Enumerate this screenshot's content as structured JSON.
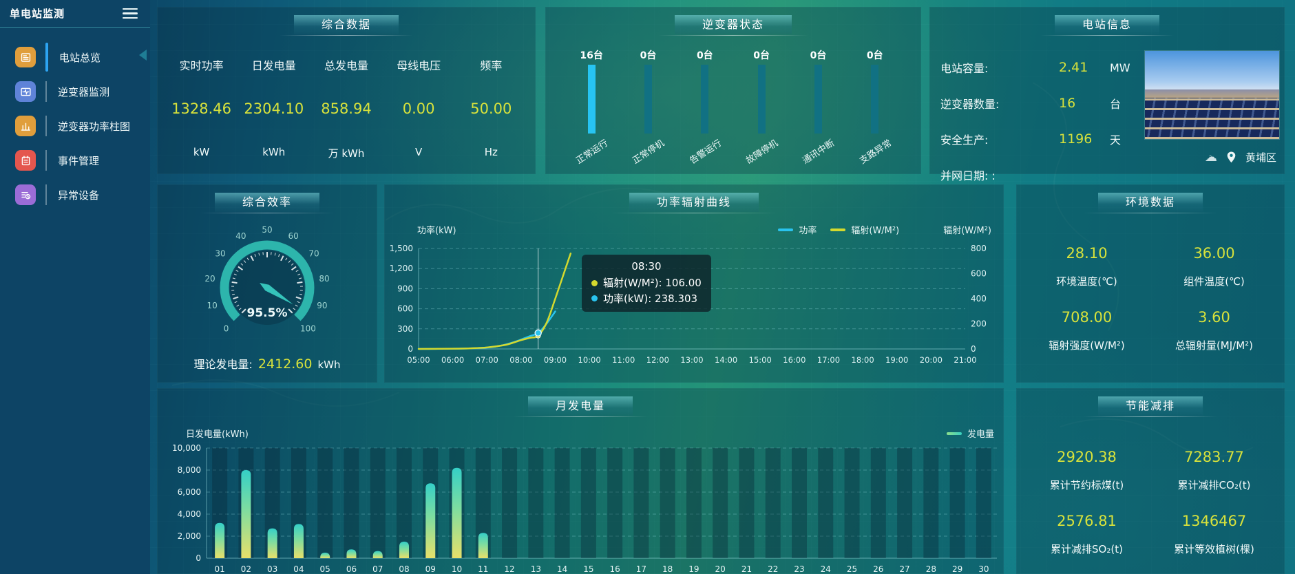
{
  "sidebar": {
    "title": "单电站监测",
    "items": [
      {
        "label": "电站总览",
        "icon": "overview-icon",
        "color": "#E09E3C",
        "active": true
      },
      {
        "label": "逆变器监测",
        "icon": "inverter-monitor-icon",
        "color": "#5F83D8",
        "active": false
      },
      {
        "label": "逆变器功率柱图",
        "icon": "power-bars-icon",
        "color": "#E09E3C",
        "active": false
      },
      {
        "label": "事件管理",
        "icon": "events-icon",
        "color": "#E4564E",
        "active": false
      },
      {
        "label": "异常设备",
        "icon": "abnormal-devices-icon",
        "color": "#9B6CD6",
        "active": false
      }
    ]
  },
  "summary": {
    "title": "综合数据",
    "metrics": [
      {
        "label": "实时功率",
        "value": "1328.46",
        "unit": "kW"
      },
      {
        "label": "日发电量",
        "value": "2304.10",
        "unit": "kWh"
      },
      {
        "label": "总发电量",
        "value": "858.94",
        "unit": "万 kWh"
      },
      {
        "label": "母线电压",
        "value": "0.00",
        "unit": "V"
      },
      {
        "label": "频率",
        "value": "50.00",
        "unit": "Hz"
      }
    ]
  },
  "inverter_status": {
    "title": "逆变器状态",
    "items": [
      {
        "count": "16台",
        "label": "正常运行",
        "highlight": true
      },
      {
        "count": "0台",
        "label": "正常停机",
        "highlight": false
      },
      {
        "count": "0台",
        "label": "告警运行",
        "highlight": false
      },
      {
        "count": "0台",
        "label": "故障停机",
        "highlight": false
      },
      {
        "count": "0台",
        "label": "通讯中断",
        "highlight": false
      },
      {
        "count": "0台",
        "label": "支路异常",
        "highlight": false
      }
    ],
    "bar_color_active": "#27c4f2",
    "bar_color_idle": "#117183"
  },
  "station_info": {
    "title": "电站信息",
    "rows": [
      {
        "label": "电站容量:",
        "value": "2.41",
        "unit": "MW"
      },
      {
        "label": "逆变器数量:",
        "value": "16",
        "unit": "台"
      },
      {
        "label": "安全生产:",
        "value": "1196",
        "unit": "天"
      },
      {
        "label": "并网日期: :",
        "value": "",
        "unit": ""
      }
    ],
    "location": "黄埔区",
    "weather_icon": "cloud-unknown"
  },
  "efficiency": {
    "title": "综合效率",
    "value_text": "95.5%",
    "footer_label": "理论发电量:",
    "footer_value": "2412.60",
    "footer_unit": "kWh"
  },
  "power_chart": {
    "title": "功率辐射曲线",
    "left_axis_title": "功率(kW)",
    "right_axis_title": "辐射(W/M²)",
    "legend": [
      {
        "label": "功率",
        "color": "#29c3ee"
      },
      {
        "label": "辐射(W/M²)",
        "color": "#d4d92e"
      }
    ],
    "tooltip": {
      "time": "08:30",
      "rows": [
        {
          "label": "辐射(W/M²)",
          "value": "106.00",
          "color": "#d4d92e"
        },
        {
          "label": "功率(kW)",
          "value": "238.303",
          "color": "#29c3ee"
        }
      ]
    }
  },
  "environment": {
    "title": "环境数据",
    "cells": [
      {
        "value": "28.10",
        "label": "环境温度(℃)"
      },
      {
        "value": "36.00",
        "label": "组件温度(℃)"
      },
      {
        "value": "708.00",
        "label": "辐射强度(W/M²)"
      },
      {
        "value": "3.60",
        "label": "总辐射量(MJ/M²)"
      }
    ]
  },
  "monthly_chart": {
    "title": "月发电量",
    "ylabel": "日发电量(kWh)",
    "legend": "发电量"
  },
  "energy_saving": {
    "title": "节能减排",
    "cells": [
      {
        "value": "2920.38",
        "label": "累计节约标煤(t)"
      },
      {
        "value": "7283.77",
        "label": "累计减排CO₂(t)"
      },
      {
        "value": "2576.81",
        "label": "累计减排SO₂(t)"
      },
      {
        "value": "1346467",
        "label": "累计等效植树(棵)"
      }
    ]
  },
  "chart_data": [
    {
      "type": "gauge",
      "title": "综合效率",
      "min": 0,
      "max": 100,
      "value": 95.5,
      "unit": "%",
      "tick_labels": [
        0,
        10,
        20,
        30,
        40,
        50,
        60,
        70,
        80,
        90,
        100
      ],
      "ring_color": "#2db5ac",
      "label_color": "#9ed4d0"
    },
    {
      "type": "line",
      "title": "功率辐射曲线",
      "x_labels": [
        "05:00",
        "06:00",
        "07:00",
        "08:00",
        "09:00",
        "10:00",
        "11:00",
        "12:00",
        "13:00",
        "14:00",
        "15:00",
        "16:00",
        "17:00",
        "18:00",
        "19:00",
        "20:00",
        "21:00"
      ],
      "x_range": [
        5,
        21
      ],
      "y_left": {
        "label": "功率(kW)",
        "min": 0,
        "max": 1500,
        "ticks": [
          0,
          300,
          600,
          900,
          1200,
          1500
        ]
      },
      "y_right": {
        "label": "辐射(W/M²)",
        "min": 0,
        "max": 800,
        "ticks": [
          0,
          200,
          400,
          600,
          800
        ]
      },
      "grid": true,
      "legend_position": "top-right",
      "series": [
        {
          "name": "功率",
          "axis": "left",
          "color": "#29c3ee",
          "points": [
            [
              5,
              0
            ],
            [
              5.5,
              1
            ],
            [
              6,
              3
            ],
            [
              6.5,
              8
            ],
            [
              7,
              20
            ],
            [
              7.25,
              35
            ],
            [
              7.5,
              60
            ],
            [
              7.75,
              95
            ],
            [
              8,
              140
            ],
            [
              8.25,
              190
            ],
            [
              8.5,
              238.3
            ],
            [
              8.75,
              380
            ],
            [
              9,
              560
            ]
          ]
        },
        {
          "name": "辐射(W/M²)",
          "axis": "right",
          "color": "#d4d92e",
          "points": [
            [
              5,
              0
            ],
            [
              5.5,
              1
            ],
            [
              6,
              2
            ],
            [
              6.5,
              5
            ],
            [
              7,
              12
            ],
            [
              7.5,
              30
            ],
            [
              7.75,
              48
            ],
            [
              8,
              70
            ],
            [
              8.25,
              88
            ],
            [
              8.5,
              106
            ],
            [
              8.75,
              210
            ],
            [
              9,
              400
            ],
            [
              9.25,
              600
            ],
            [
              9.45,
              760
            ]
          ]
        }
      ],
      "pointer": {
        "x": 8.5,
        "power": 238.303,
        "radiation": 106.0
      }
    },
    {
      "type": "bar",
      "title": "月发电量",
      "categories": [
        "01",
        "02",
        "03",
        "04",
        "05",
        "06",
        "07",
        "08",
        "09",
        "10",
        "11",
        "12",
        "13",
        "14",
        "15",
        "16",
        "17",
        "18",
        "19",
        "20",
        "21",
        "22",
        "23",
        "24",
        "25",
        "26",
        "27",
        "28",
        "29",
        "30"
      ],
      "values": [
        3200,
        8000,
        2700,
        3100,
        500,
        800,
        650,
        1500,
        6800,
        8200,
        2300,
        0,
        0,
        0,
        0,
        0,
        0,
        0,
        0,
        0,
        0,
        0,
        0,
        0,
        0,
        0,
        0,
        0,
        0,
        0
      ],
      "xlabel": "",
      "ylabel": "日发电量(kWh)",
      "ylim": [
        0,
        10000
      ],
      "yticks": [
        0,
        2000,
        4000,
        6000,
        8000,
        10000
      ],
      "grid": true,
      "legend": "发电量",
      "bar_gradient": [
        "#e8e06a",
        "#7edda0",
        "#35cfc7"
      ]
    }
  ]
}
